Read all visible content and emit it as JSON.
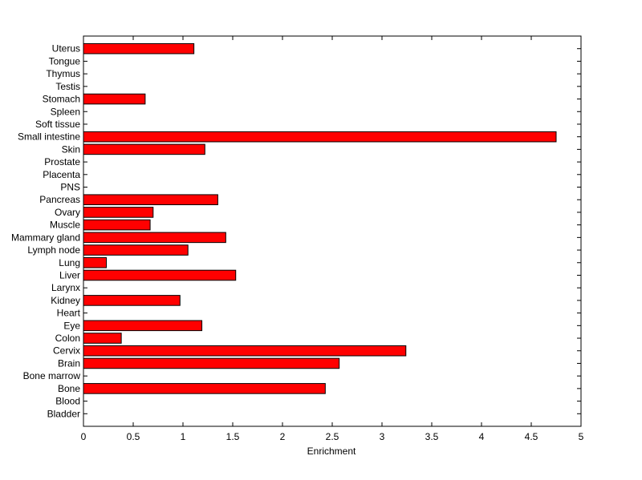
{
  "chart_data": {
    "type": "bar",
    "orientation": "horizontal",
    "title": "",
    "xlabel": "Enrichment",
    "ylabel": "",
    "xlim": [
      0,
      5
    ],
    "x_ticks": [
      "0",
      "0.5",
      "1",
      "1.5",
      "2",
      "2.5",
      "3",
      "3.5",
      "4",
      "4.5",
      "5"
    ],
    "grid": false,
    "legend": "none",
    "bar_color": "#ff0000",
    "edge_color": "#000000",
    "categories": [
      "Bladder",
      "Blood",
      "Bone",
      "Bone marrow",
      "Brain",
      "Cervix",
      "Colon",
      "Eye",
      "Heart",
      "Kidney",
      "Larynx",
      "Liver",
      "Lung",
      "Lymph node",
      "Mammary gland",
      "Muscle",
      "Ovary",
      "Pancreas",
      "PNS",
      "Placenta",
      "Prostate",
      "Skin",
      "Small intestine",
      "Soft tissue",
      "Spleen",
      "Stomach",
      "Testis",
      "Thymus",
      "Tongue",
      "Uterus"
    ],
    "values": [
      0,
      0,
      2.43,
      0,
      2.57,
      3.24,
      0.38,
      1.19,
      0,
      0.97,
      0,
      1.53,
      0.23,
      1.05,
      1.43,
      0.67,
      0.7,
      1.35,
      0,
      0,
      0,
      1.22,
      4.75,
      0,
      0,
      0.62,
      0,
      0,
      0,
      1.11
    ]
  }
}
